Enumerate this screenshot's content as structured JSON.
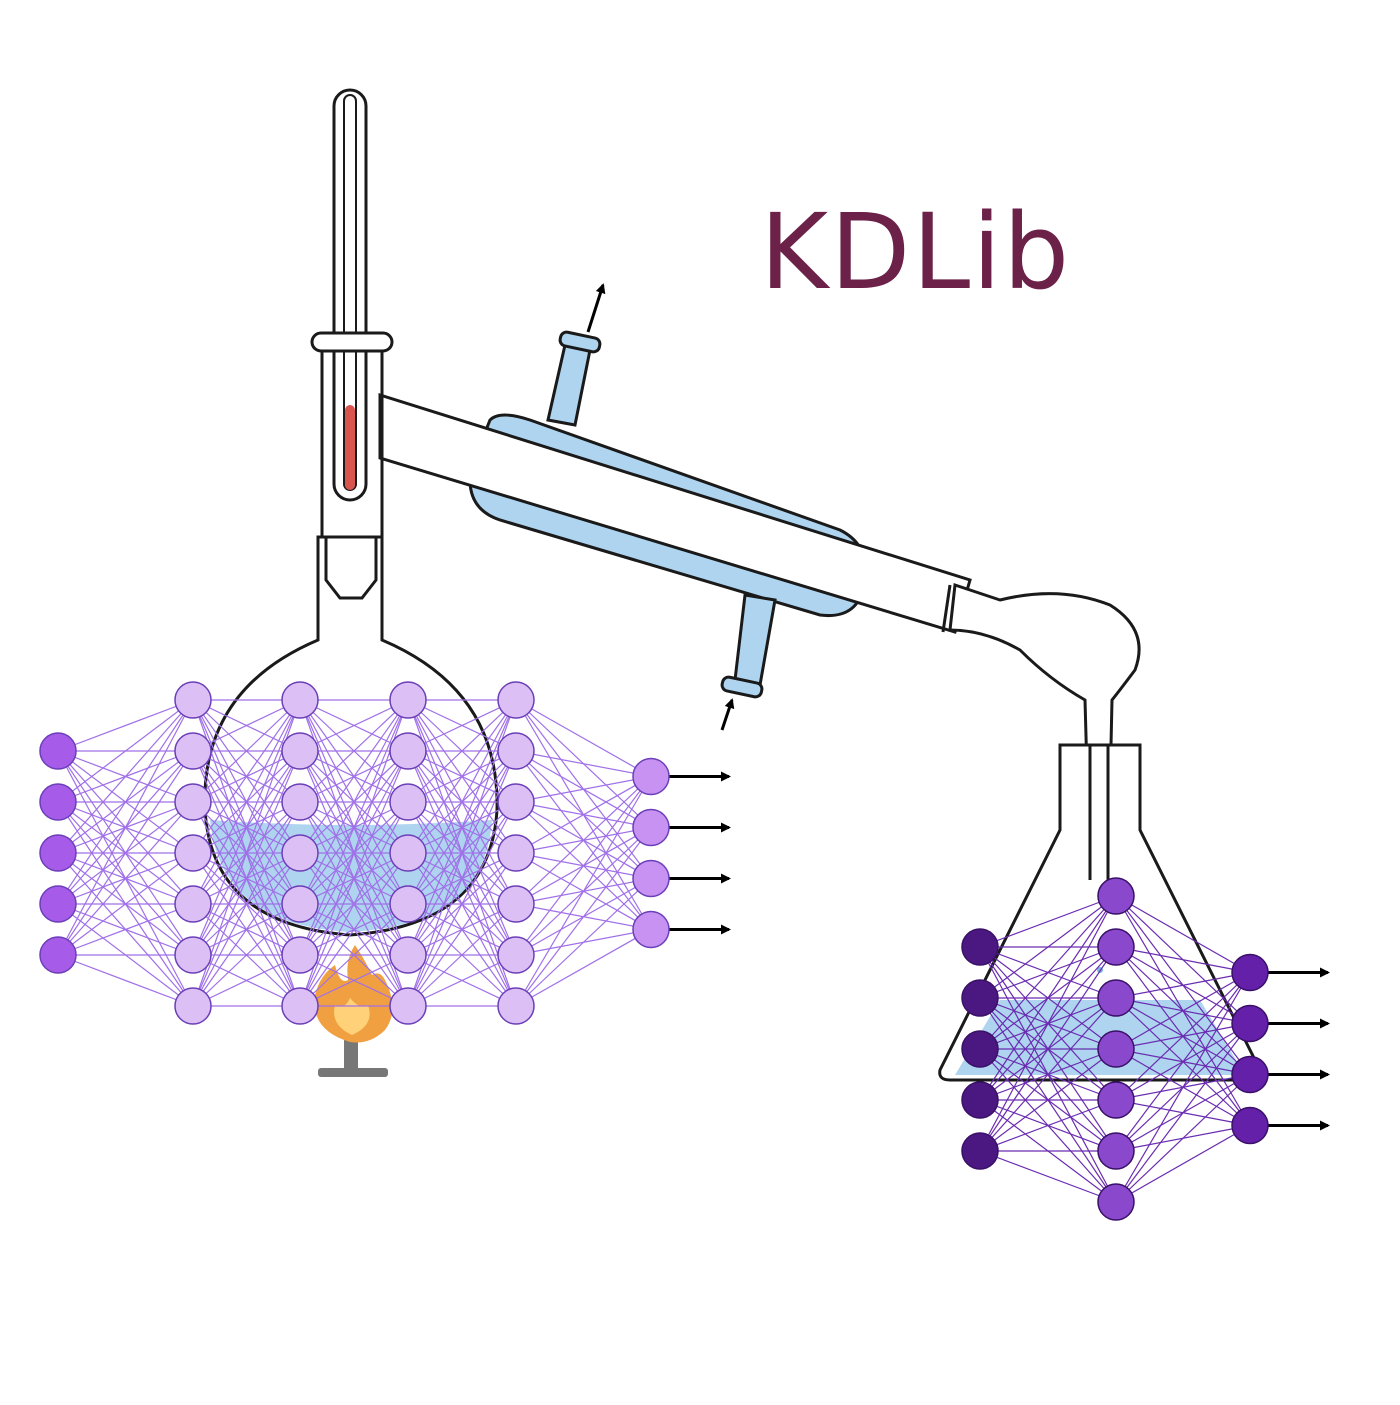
{
  "logo": {
    "text": "KDLib",
    "color": "#6b2148"
  },
  "colors": {
    "outline": "#1a1a1a",
    "water": "#aed4f0",
    "liquid_red": "#d9534f",
    "flame_outer": "#f0a040",
    "flame_inner": "#ffd27a",
    "teacher_edge": "#a070e8",
    "teacher_input": "#a65ce8",
    "teacher_hidden": "#dcc0f5",
    "teacher_output": "#c792f2",
    "teacher_stroke": "#6b3fb8",
    "student_edge": "#6a2cb0",
    "student_input": "#4a1880",
    "student_hidden": "#8a48cc",
    "student_output": "#6420a8",
    "student_stroke": "#3a1068"
  },
  "teacher_network": {
    "name": "teacher-network",
    "layer_sizes": [
      5,
      7,
      7,
      7,
      7,
      4
    ]
  },
  "student_network": {
    "name": "student-network",
    "layer_sizes": [
      5,
      7,
      4
    ]
  },
  "apparatus": {
    "icons": [
      "thermometer-icon",
      "round-bottom-flask-icon",
      "condenser-icon",
      "adapter-icon",
      "erlenmeyer-flask-icon",
      "bunsen-burner-icon",
      "flame-icon"
    ]
  }
}
